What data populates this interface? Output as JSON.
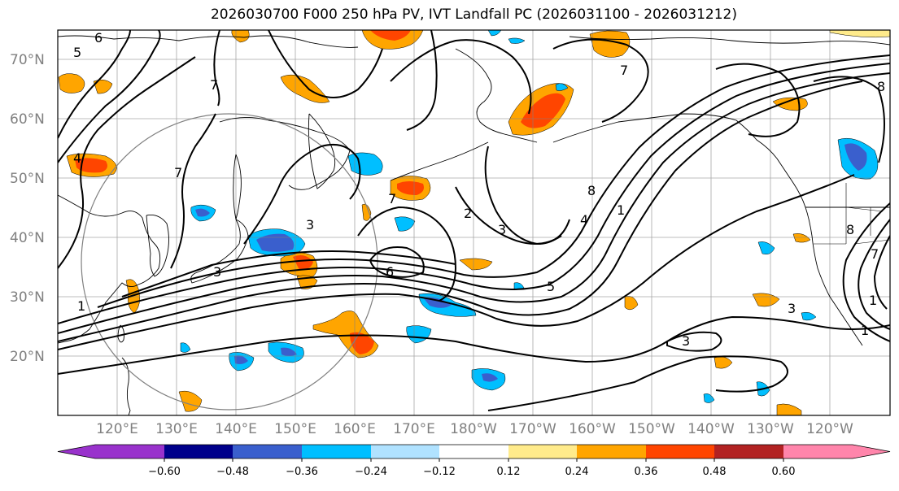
{
  "title": "2026030700 F000 250 hPa PV, IVT Landfall PC (2026031100 - 2026031212)",
  "map": {
    "lat_labels": [
      "70°N",
      "60°N",
      "50°N",
      "40°N",
      "30°N",
      "20°N"
    ],
    "lon_labels": [
      "120°E",
      "130°E",
      "140°E",
      "150°E",
      "160°E",
      "170°E",
      "180°W",
      "170°W",
      "160°W",
      "150°W",
      "140°W",
      "130°W",
      "120°W"
    ],
    "contour_labels": [
      "6",
      "5",
      "7",
      "4",
      "7",
      "3",
      "7",
      "6",
      "3",
      "5",
      "7",
      "8",
      "1",
      "4",
      "8",
      "3",
      "1",
      "2",
      "3",
      "3",
      "1",
      "1",
      "8",
      "7"
    ],
    "colors": {
      "land_outline": "#000000",
      "grid": "#808080",
      "contour": "#000000",
      "circle": "#808080"
    }
  },
  "colorbar": {
    "tick_labels": [
      "−0.60",
      "−0.48",
      "−0.36",
      "−0.24",
      "−0.12",
      "0.12",
      "0.24",
      "0.36",
      "0.48",
      "0.60"
    ],
    "colors": [
      "#9932cc",
      "#00008b",
      "#3a5fcd",
      "#00bfff",
      "#b0e2ff",
      "#ffffff",
      "#ffeb8b",
      "#ffa500",
      "#ff4500",
      "#b22222",
      "#ff85ab"
    ]
  }
}
